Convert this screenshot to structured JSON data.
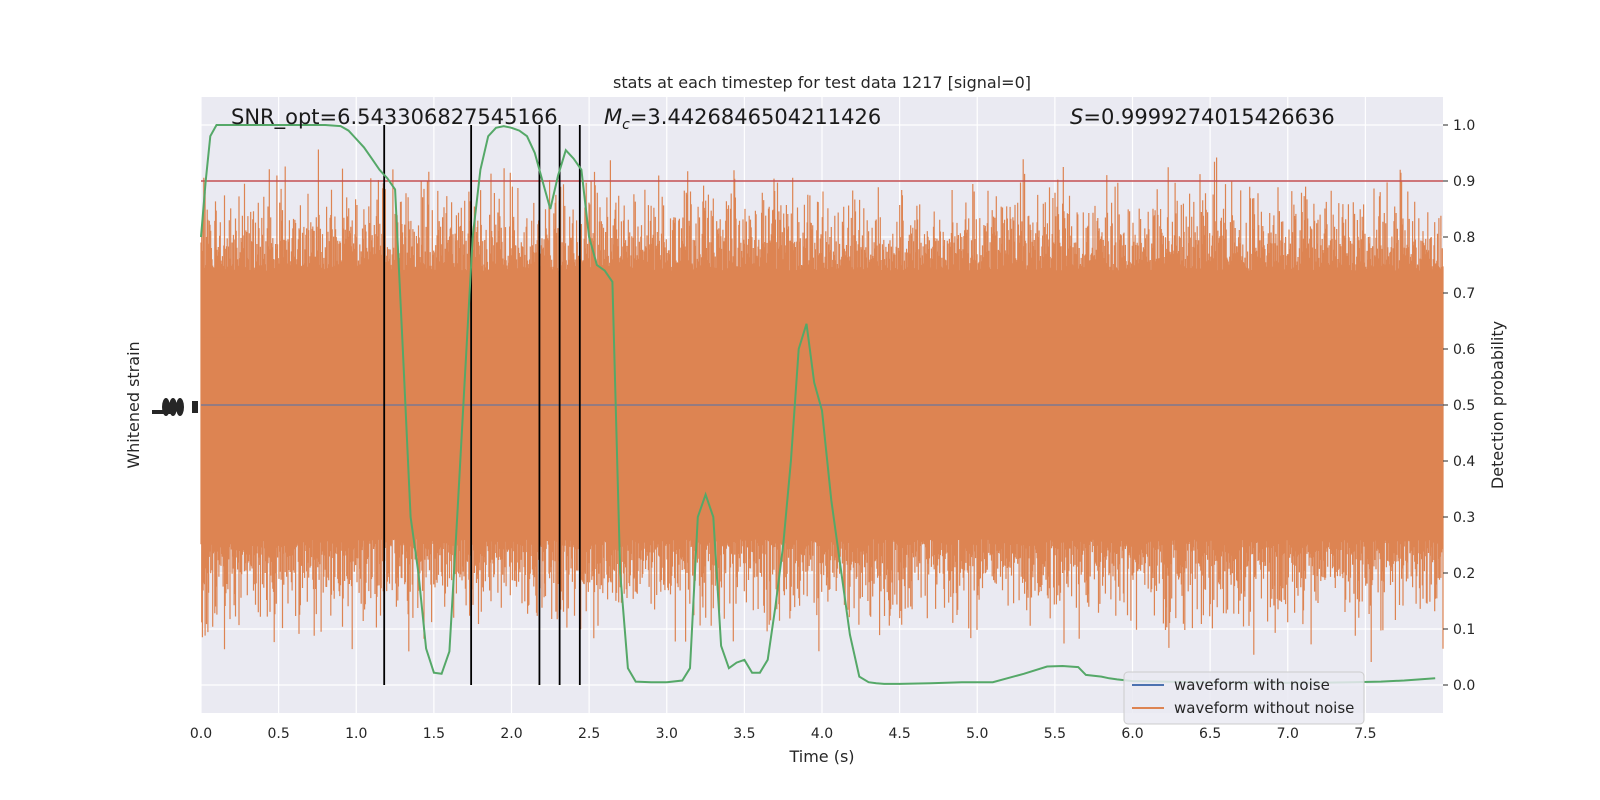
{
  "chart_data": {
    "type": "line",
    "title": "stats at each timestep for test data 1217 [signal=0]",
    "xlabel": "Time (s)",
    "ylabel_left": "Whitened strain",
    "ylabel_right": "Detection probability",
    "xlim": [
      0,
      8.0
    ],
    "ylim_right": [
      -0.05,
      1.05
    ],
    "x_ticks": [
      "0.0",
      "0.5",
      "1.0",
      "1.5",
      "2.0",
      "2.5",
      "3.0",
      "3.5",
      "4.0",
      "4.5",
      "5.0",
      "5.5",
      "6.0",
      "6.5",
      "7.0",
      "7.5"
    ],
    "x_tick_values": [
      0,
      0.5,
      1,
      1.5,
      2,
      2.5,
      3,
      3.5,
      4,
      4.5,
      5,
      5.5,
      6,
      6.5,
      7,
      7.5
    ],
    "y_ticks_right": [
      "0.0",
      "0.1",
      "0.2",
      "0.3",
      "0.4",
      "0.5",
      "0.6",
      "0.7",
      "0.8",
      "0.9",
      "1.0"
    ],
    "y_tick_values_right": [
      0,
      0.1,
      0.2,
      0.3,
      0.4,
      0.5,
      0.6,
      0.7,
      0.8,
      0.9,
      1.0
    ],
    "grid": true,
    "annotations": {
      "snr_symbol": "SNR_opt",
      "snr": "=6.543306827545166",
      "mc_symbol": "M",
      "mc_sub": "c",
      "mc": "=3.4426846504211426",
      "s_symbol": "S",
      "s": "=0.9999274015426636"
    },
    "threshold": 0.9,
    "vertical_lines_x": [
      1.18,
      1.74,
      2.18,
      2.31,
      2.44
    ],
    "legend": {
      "placement": "lower-right",
      "entries": [
        "waveform with noise",
        "waveform without noise"
      ]
    },
    "series": [
      {
        "name": "waveform with noise",
        "color": "#4c72b0",
        "style": "line"
      },
      {
        "name": "waveform without noise",
        "color": "#dd8452",
        "style": "noise-band"
      },
      {
        "color": "#55a868",
        "x": [
          0,
          0.03,
          0.06,
          0.1,
          0.15,
          0.2,
          0.3,
          0.4,
          0.5,
          0.6,
          0.7,
          0.8,
          0.9,
          0.95,
          1.0,
          1.05,
          1.1,
          1.15,
          1.2,
          1.25,
          1.3,
          1.35,
          1.4,
          1.45,
          1.5,
          1.55,
          1.6,
          1.65,
          1.7,
          1.75,
          1.8,
          1.85,
          1.9,
          1.95,
          2.0,
          2.05,
          2.1,
          2.15,
          2.2,
          2.25,
          2.3,
          2.35,
          2.4,
          2.45,
          2.5,
          2.55,
          2.6,
          2.65,
          2.7,
          2.75,
          2.8,
          2.9,
          3.0,
          3.1,
          3.15,
          3.2,
          3.25,
          3.3,
          3.35,
          3.4,
          3.45,
          3.5,
          3.55,
          3.6,
          3.65,
          3.7,
          3.75,
          3.8,
          3.85,
          3.9,
          3.95,
          4.0,
          4.06,
          4.12,
          4.18,
          4.24,
          4.3,
          4.35,
          4.4,
          4.45,
          4.5,
          4.7,
          4.9,
          5.1,
          5.3,
          5.45,
          5.55,
          5.65,
          5.7,
          5.8,
          5.85,
          5.9,
          6.0,
          6.2,
          6.4,
          6.6,
          6.8,
          7.0,
          7.2,
          7.4,
          7.6,
          7.75,
          7.85,
          7.95
        ],
        "y": [
          0.8,
          0.9,
          0.98,
          1.0,
          1.0,
          1.0,
          1.0,
          1.0,
          1.0,
          1.0,
          1.0,
          1.0,
          0.998,
          0.99,
          0.975,
          0.96,
          0.94,
          0.92,
          0.905,
          0.885,
          0.6,
          0.3,
          0.2,
          0.065,
          0.022,
          0.02,
          0.06,
          0.3,
          0.55,
          0.8,
          0.92,
          0.98,
          0.995,
          0.998,
          0.995,
          0.99,
          0.98,
          0.95,
          0.9,
          0.85,
          0.91,
          0.955,
          0.94,
          0.92,
          0.8,
          0.75,
          0.74,
          0.72,
          0.2,
          0.03,
          0.006,
          0.005,
          0.005,
          0.008,
          0.03,
          0.3,
          0.34,
          0.3,
          0.07,
          0.03,
          0.04,
          0.045,
          0.022,
          0.022,
          0.045,
          0.14,
          0.25,
          0.4,
          0.6,
          0.645,
          0.54,
          0.49,
          0.33,
          0.21,
          0.09,
          0.015,
          0.005,
          0.003,
          0.002,
          0.002,
          0.002,
          0.003,
          0.005,
          0.005,
          0.02,
          0.033,
          0.034,
          0.032,
          0.018,
          0.015,
          0.012,
          0.01,
          0.007,
          0.006,
          0.005,
          0.004,
          0.004,
          0.004,
          0.004,
          0.005,
          0.006,
          0.008,
          0.01,
          0.012
        ]
      }
    ]
  }
}
